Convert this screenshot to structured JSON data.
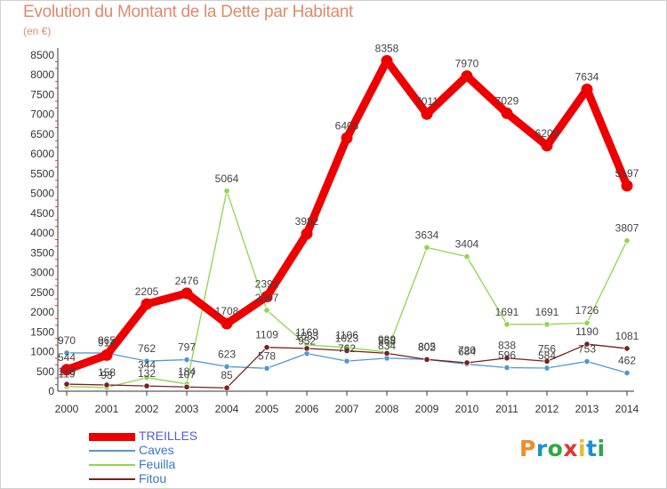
{
  "title": "Evolution du Montant de la Dette par Habitant",
  "unit": "(en €)",
  "logo": {
    "letters": [
      "P",
      "r",
      "o",
      "x",
      "i",
      "t",
      "i"
    ],
    "colors": [
      "#f08c2a",
      "#1d8fd8",
      "#2fa845",
      "#e0372b",
      "#f0b82a",
      "#1d8fd8",
      "#2fa845"
    ]
  },
  "chart_data": {
    "type": "line",
    "x": [
      2000,
      2001,
      2002,
      2003,
      2004,
      2005,
      2006,
      2007,
      2008,
      2009,
      2010,
      2011,
      2012,
      2013,
      2014
    ],
    "ylim": [
      0,
      8500
    ],
    "yticks": [
      0,
      500,
      1000,
      1500,
      2000,
      2500,
      3000,
      3500,
      4000,
      4500,
      5000,
      5500,
      6000,
      6500,
      7000,
      7500,
      8000,
      8500
    ],
    "grid": false,
    "legend_position": "bottom-left",
    "series": [
      {
        "name": "TREILLES",
        "color": "#ee0000",
        "values": [
          544,
          914,
          2205,
          2476,
          1708,
          2391,
          3982,
          6403,
          8358,
          7011,
          7970,
          7029,
          6209,
          7634,
          5197
        ],
        "labels": [
          "544",
          "914",
          "2205",
          "2476",
          "1708",
          "2391",
          "3982",
          "6403",
          "8358",
          "7011",
          "7970",
          "7029",
          "6209",
          "7634",
          "5197"
        ]
      },
      {
        "name": "Caves",
        "color": "#4f98d1",
        "values": [
          970,
          965,
          762,
          797,
          623,
          578,
          952,
          762,
          834,
          805,
          684,
          596,
          584,
          753,
          462
        ],
        "labels": [
          "970",
          "965",
          "762",
          "797",
          "623",
          "578",
          "952",
          "762",
          "834",
          "805",
          "684",
          "596",
          "584",
          "753",
          "462"
        ]
      },
      {
        "name": "Feuilla",
        "color": "#8ed64c",
        "values": [
          119,
          93,
          344,
          184,
          5064,
          2047,
          1169,
          1106,
          989,
          3634,
          3404,
          1691,
          1691,
          1726,
          3807
        ],
        "labels": [
          "119",
          "93",
          "344",
          "184",
          "5064",
          "2047",
          "1169",
          "1106",
          "989",
          "3634",
          "3404",
          "1691",
          "1691",
          "1726",
          "3807"
        ]
      },
      {
        "name": "Fitou",
        "color": "#7a1f1f",
        "values": [
          179,
          158,
          132,
          107,
          85,
          1109,
          1083,
          1023,
          958,
          802,
          720,
          838,
          756,
          1190,
          1081
        ],
        "labels": [
          "179",
          "158",
          "132",
          "107",
          "85",
          "1109",
          "1083",
          "1023",
          "958",
          "802",
          "720",
          "838",
          "756",
          "1190",
          "1081"
        ]
      }
    ]
  }
}
